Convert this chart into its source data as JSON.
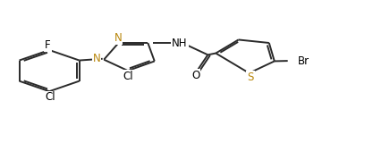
{
  "background": "#ffffff",
  "line_color": "#2a2a2a",
  "line_width": 1.4,
  "label_fontsize": 8.5,
  "N_color": "#b8860b",
  "S_color": "#b8860b",
  "figsize": [
    4.17,
    1.6
  ],
  "dpi": 100,
  "xlim": [
    0,
    14
  ],
  "ylim": [
    0,
    9
  ]
}
